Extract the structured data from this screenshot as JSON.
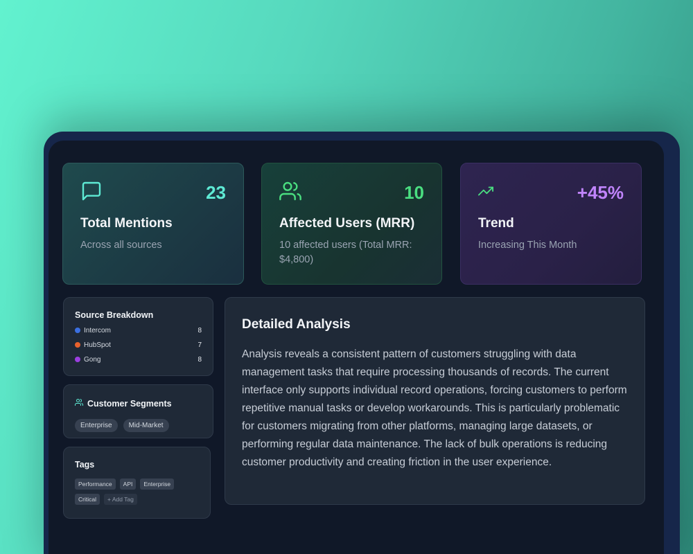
{
  "stats": [
    {
      "value": "23",
      "title": "Total Mentions",
      "subtitle": "Across all sources",
      "icon": "chat-bubble-icon",
      "color": "#5eead4"
    },
    {
      "value": "10",
      "title": "Affected Users (MRR)",
      "subtitle": "10 affected users (Total MRR: $4,800)",
      "icon": "users-icon",
      "color": "#4ade80"
    },
    {
      "value": "+45%",
      "title": "Trend",
      "subtitle": "Increasing This Month",
      "icon": "trending-up-icon",
      "color": "#c084fc"
    }
  ],
  "source_breakdown": {
    "title": "Source Breakdown",
    "items": [
      {
        "label": "Intercom",
        "count": "8",
        "color": "#3b6fe0"
      },
      {
        "label": "HubSpot",
        "count": "7",
        "color": "#e8612c"
      },
      {
        "label": "Gong",
        "count": "8",
        "color": "#9b3fe0"
      }
    ]
  },
  "customer_segments": {
    "title": "Customer Segments",
    "items": [
      "Enterprise",
      "Mid-Market"
    ]
  },
  "tags": {
    "title": "Tags",
    "items": [
      "Performance",
      "API",
      "Enterprise",
      "Critical"
    ],
    "add_label": "+ Add Tag"
  },
  "analysis": {
    "title": "Detailed Analysis",
    "body": "Analysis reveals a consistent pattern of customers struggling with data management tasks that require processing thousands of records. The current interface only supports individual record operations, forcing customers to perform repetitive manual tasks or develop workarounds. This is particularly problematic for customers migrating from other platforms, managing large datasets, or performing regular data maintenance. The lack of bulk operations is reducing customer productivity and creating friction in the user experience."
  }
}
